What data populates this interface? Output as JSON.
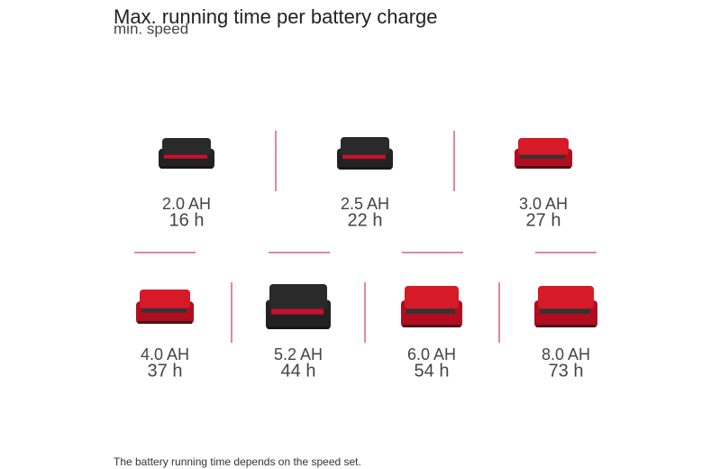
{
  "header": {
    "title": "Max. running time per battery charge",
    "subtitle": "min. speed"
  },
  "items": [
    {
      "capacity": "2.0 AH",
      "runtime": "16 h"
    },
    {
      "capacity": "2.5 AH",
      "runtime": "22 h"
    },
    {
      "capacity": "3.0 AH",
      "runtime": "27 h"
    },
    {
      "capacity": "4.0 AH",
      "runtime": "37 h"
    },
    {
      "capacity": "5.2 AH",
      "runtime": "44 h"
    },
    {
      "capacity": "6.0 AH",
      "runtime": "54 h"
    },
    {
      "capacity": "8.0 AH",
      "runtime": "73 h"
    }
  ],
  "footnote": "The battery running time depends on the speed set."
}
